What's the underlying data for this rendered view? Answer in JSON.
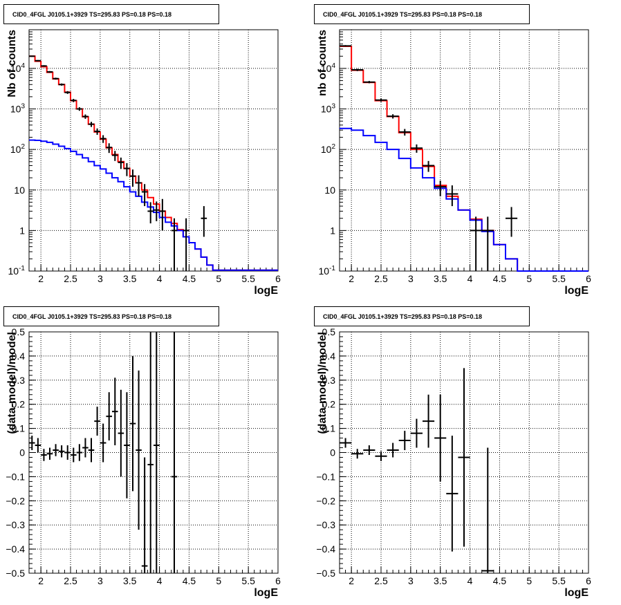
{
  "chart_data": [
    {
      "id": "tl",
      "type": "step",
      "title": "CID0_4FGL J0105.1+3929 TS=295.83 PS=0.18 PS=0.18",
      "xlabel": "logE",
      "ylabel": "Nb of counts",
      "ylog": true,
      "xlim": [
        1.8,
        6
      ],
      "ylim": [
        0.1,
        90000
      ],
      "grid": true,
      "x_ticks": [
        "2",
        "2.5",
        "3",
        "3.5",
        "4",
        "4.5",
        "5",
        "5.5",
        "6"
      ],
      "y_ticks": [
        "10^-1",
        "1",
        "10",
        "10^2",
        "10^3",
        "10^4"
      ],
      "bin_edges": [
        1.8,
        1.9,
        2.0,
        2.1,
        2.2,
        2.3,
        2.4,
        2.5,
        2.6,
        2.7,
        2.8,
        2.9,
        3.0,
        3.1,
        3.2,
        3.3,
        3.4,
        3.5,
        3.6,
        3.7,
        3.8,
        3.9,
        4.0,
        4.1,
        4.2,
        4.3,
        4.4,
        4.5,
        4.6,
        4.7,
        4.8,
        4.9,
        5.0,
        5.1,
        5.2,
        5.3,
        5.4,
        5.5,
        5.6,
        5.7,
        5.8,
        5.9,
        6.0
      ],
      "series": [
        {
          "color": "#ff0000",
          "values": [
            20000,
            15000,
            11000,
            8000,
            5500,
            4000,
            2600,
            1600,
            1000,
            640,
            420,
            270,
            180,
            110,
            75,
            50,
            34,
            22,
            15,
            10,
            6.5,
            4.5,
            3.0,
            2.1,
            1.5,
            1.05,
            0.7,
            0.5,
            0.35,
            0.22,
            0.14,
            0.105,
            0.105,
            0.105,
            0.105,
            0.105,
            0.105,
            0.105,
            0.105,
            0.105,
            0.105,
            0.105
          ]
        },
        {
          "color": "#0000ff",
          "values": [
            170,
            168,
            160,
            150,
            135,
            120,
            105,
            90,
            75,
            62,
            50,
            40,
            33,
            26,
            20,
            16,
            12,
            9,
            7,
            5,
            3.8,
            2.8,
            2.1,
            1.6,
            1.3,
            1.0,
            0.7,
            0.5,
            0.35,
            0.22,
            0.14,
            0.105,
            0.105,
            0.105,
            0.105,
            0.105,
            0.105,
            0.105,
            0.105,
            0.105,
            0.105,
            0.105
          ]
        }
      ],
      "points": [
        {
          "x": 1.85,
          "y": 20000,
          "yerr": [
            700,
            700
          ]
        },
        {
          "x": 1.95,
          "y": 15500,
          "yerr": [
            600,
            600
          ]
        },
        {
          "x": 2.05,
          "y": 11500,
          "yerr": [
            500,
            500
          ]
        },
        {
          "x": 2.15,
          "y": 8200,
          "yerr": [
            400,
            400
          ]
        },
        {
          "x": 2.25,
          "y": 5600,
          "yerr": [
            300,
            300
          ]
        },
        {
          "x": 2.35,
          "y": 4000,
          "yerr": [
            250,
            250
          ]
        },
        {
          "x": 2.45,
          "y": 2550,
          "yerr": [
            200,
            200
          ]
        },
        {
          "x": 2.55,
          "y": 1620,
          "yerr": [
            150,
            150
          ]
        },
        {
          "x": 2.65,
          "y": 1000,
          "yerr": [
            100,
            100
          ]
        },
        {
          "x": 2.75,
          "y": 650,
          "yerr": [
            80,
            80
          ]
        },
        {
          "x": 2.85,
          "y": 420,
          "yerr": [
            60,
            60
          ]
        },
        {
          "x": 2.95,
          "y": 280,
          "yerr": [
            50,
            50
          ]
        },
        {
          "x": 3.05,
          "y": 185,
          "yerr": [
            40,
            40
          ]
        },
        {
          "x": 3.15,
          "y": 112,
          "yerr": [
            30,
            30
          ]
        },
        {
          "x": 3.25,
          "y": 72,
          "yerr": [
            20,
            20
          ]
        },
        {
          "x": 3.35,
          "y": 48,
          "yerr": [
            15,
            15
          ]
        },
        {
          "x": 3.45,
          "y": 34,
          "yerr": [
            12,
            12
          ]
        },
        {
          "x": 3.55,
          "y": 22,
          "yerr": [
            10,
            10
          ]
        },
        {
          "x": 3.65,
          "y": 15,
          "yerr": [
            8,
            8
          ]
        },
        {
          "x": 3.75,
          "y": 9,
          "yerr": [
            5,
            5
          ]
        },
        {
          "x": 3.85,
          "y": 3.0,
          "yerr": [
            1.5,
            2
          ]
        },
        {
          "x": 3.95,
          "y": 3.2,
          "yerr": [
            1.5,
            2
          ]
        },
        {
          "x": 4.05,
          "y": 3.0,
          "yerr": [
            2,
            3
          ]
        },
        {
          "x": 4.25,
          "y": 1.0,
          "yerr": [
            0.9,
            1
          ]
        },
        {
          "x": 4.45,
          "y": 1.0,
          "yerr": [
            0.9,
            1
          ]
        },
        {
          "x": 4.75,
          "y": 2.0,
          "yerr": [
            1.3,
            2
          ]
        }
      ]
    },
    {
      "id": "tr",
      "type": "step",
      "title": "CID0_4FGL J0105.1+3929 TS=295.83 PS=0.18 PS=0.18",
      "xlabel": "logE",
      "ylabel": "nb of counts",
      "ylog": true,
      "xlim": [
        1.8,
        6
      ],
      "ylim": [
        0.1,
        90000
      ],
      "grid": true,
      "x_ticks": [
        "2",
        "2.5",
        "3",
        "3.5",
        "4",
        "4.5",
        "5",
        "5.5",
        "6"
      ],
      "y_ticks": [
        "10^-1",
        "1",
        "10",
        "10^2",
        "10^3",
        "10^4"
      ],
      "bin_edges": [
        1.8,
        2.0,
        2.2,
        2.4,
        2.6,
        2.8,
        3.0,
        3.2,
        3.4,
        3.6,
        3.8,
        4.0,
        4.2,
        4.4,
        4.6,
        4.8,
        5.0,
        5.2,
        5.4,
        5.6,
        5.8,
        6.0
      ],
      "series": [
        {
          "color": "#ff0000",
          "values": [
            35000,
            9000,
            4500,
            1600,
            650,
            260,
            100,
            38,
            13,
            7,
            3.2,
            1.9,
            1.0,
            0.45,
            0.2,
            0.1,
            0.1,
            0.1,
            0.1,
            0.1,
            0.1
          ]
        },
        {
          "color": "#0000ff",
          "values": [
            330,
            300,
            220,
            150,
            100,
            60,
            35,
            20,
            11,
            6,
            3.2,
            1.8,
            0.95,
            0.45,
            0.2,
            0.1,
            0.1,
            0.1,
            0.1,
            0.1,
            0.1
          ]
        }
      ],
      "points": [
        {
          "x": 1.9,
          "y": 36000,
          "yerr": [
            1500,
            1500
          ]
        },
        {
          "x": 2.1,
          "y": 9200,
          "yerr": [
            600,
            600
          ]
        },
        {
          "x": 2.3,
          "y": 4600,
          "yerr": [
            300,
            300
          ]
        },
        {
          "x": 2.5,
          "y": 1650,
          "yerr": [
            150,
            150
          ]
        },
        {
          "x": 2.7,
          "y": 660,
          "yerr": [
            80,
            80
          ]
        },
        {
          "x": 2.9,
          "y": 270,
          "yerr": [
            50,
            50
          ]
        },
        {
          "x": 3.1,
          "y": 108,
          "yerr": [
            25,
            25
          ]
        },
        {
          "x": 3.3,
          "y": 40,
          "yerr": [
            12,
            12
          ]
        },
        {
          "x": 3.5,
          "y": 12,
          "yerr": [
            5,
            5
          ]
        },
        {
          "x": 3.7,
          "y": 8,
          "yerr": [
            4,
            5
          ]
        },
        {
          "x": 4.1,
          "y": 1.0,
          "yerr": [
            0.9,
            1.2
          ]
        },
        {
          "x": 4.3,
          "y": 1.0,
          "yerr": [
            0.9,
            1.2
          ]
        },
        {
          "x": 4.7,
          "y": 2.0,
          "yerr": [
            1.3,
            1.8
          ]
        }
      ]
    },
    {
      "id": "bl",
      "type": "scatter",
      "title": "CID0_4FGL J0105.1+3929 TS=295.83 PS=0.18 PS=0.18",
      "xlabel": "logE",
      "ylabel": "(data-model)/model",
      "ylog": false,
      "xlim": [
        1.8,
        6
      ],
      "ylim": [
        -0.5,
        0.5
      ],
      "grid": true,
      "x_ticks": [
        "2",
        "2.5",
        "3",
        "3.5",
        "4",
        "4.5",
        "5",
        "5.5",
        "6"
      ],
      "y_ticks": [
        "-0.5",
        "-0.4",
        "-0.3",
        "-0.2",
        "-0.1",
        "0",
        "0.1",
        "0.2",
        "0.3",
        "0.4",
        "0.5"
      ],
      "points": [
        {
          "x": 1.85,
          "y": 0.04,
          "yerr": [
            0.03,
            0.03
          ]
        },
        {
          "x": 1.95,
          "y": 0.03,
          "yerr": [
            0.03,
            0.03
          ]
        },
        {
          "x": 2.05,
          "y": -0.01,
          "yerr": [
            0.025,
            0.025
          ]
        },
        {
          "x": 2.15,
          "y": -0.005,
          "yerr": [
            0.025,
            0.025
          ]
        },
        {
          "x": 2.25,
          "y": 0.01,
          "yerr": [
            0.025,
            0.025
          ]
        },
        {
          "x": 2.35,
          "y": 0.005,
          "yerr": [
            0.025,
            0.025
          ]
        },
        {
          "x": 2.45,
          "y": 0.0,
          "yerr": [
            0.03,
            0.03
          ]
        },
        {
          "x": 2.55,
          "y": -0.01,
          "yerr": [
            0.03,
            0.03
          ]
        },
        {
          "x": 2.65,
          "y": 0.0,
          "yerr": [
            0.035,
            0.035
          ]
        },
        {
          "x": 2.75,
          "y": 0.02,
          "yerr": [
            0.04,
            0.04
          ]
        },
        {
          "x": 2.85,
          "y": 0.01,
          "yerr": [
            0.05,
            0.05
          ]
        },
        {
          "x": 2.95,
          "y": 0.13,
          "yerr": [
            0.06,
            0.06
          ]
        },
        {
          "x": 3.05,
          "y": 0.04,
          "yerr": [
            0.08,
            0.08
          ]
        },
        {
          "x": 3.15,
          "y": 0.15,
          "yerr": [
            0.1,
            0.1
          ]
        },
        {
          "x": 3.25,
          "y": 0.17,
          "yerr": [
            0.14,
            0.14
          ]
        },
        {
          "x": 3.35,
          "y": 0.08,
          "yerr": [
            0.18,
            0.18
          ]
        },
        {
          "x": 3.45,
          "y": 0.03,
          "yerr": [
            0.22,
            0.22
          ]
        },
        {
          "x": 3.55,
          "y": 0.12,
          "yerr": [
            0.28,
            0.28
          ]
        },
        {
          "x": 3.65,
          "y": 0.01,
          "yerr": [
            0.33,
            0.33
          ]
        },
        {
          "x": 3.75,
          "y": -0.47,
          "yerr": [
            0.1,
            0.45
          ]
        },
        {
          "x": 3.85,
          "y": -0.05,
          "yerr": [
            0.45,
            0.55
          ]
        },
        {
          "x": 3.95,
          "y": 0.03,
          "yerr": [
            0.55,
            0.55
          ]
        },
        {
          "x": 4.25,
          "y": -0.1,
          "yerr": [
            0.5,
            0.6
          ]
        }
      ]
    },
    {
      "id": "br",
      "type": "scatter",
      "title": "CID0_4FGL J0105.1+3929 TS=295.83 PS=0.18 PS=0.18",
      "xlabel": "logE",
      "ylabel": "(data-model)/model",
      "ylog": false,
      "xlim": [
        1.8,
        6
      ],
      "ylim": [
        -0.5,
        0.5
      ],
      "grid": true,
      "x_ticks": [
        "2",
        "2.5",
        "3",
        "3.5",
        "4",
        "4.5",
        "5",
        "5.5",
        "6"
      ],
      "y_ticks": [
        "-0.5",
        "-0.4",
        "-0.3",
        "-0.2",
        "-0.1",
        "0",
        "0.1",
        "0.2",
        "0.3",
        "0.4",
        "0.5"
      ],
      "points": [
        {
          "x": 1.9,
          "y": 0.04,
          "yerr": [
            0.02,
            0.02
          ]
        },
        {
          "x": 2.1,
          "y": -0.005,
          "yerr": [
            0.02,
            0.02
          ]
        },
        {
          "x": 2.3,
          "y": 0.01,
          "yerr": [
            0.02,
            0.02
          ]
        },
        {
          "x": 2.5,
          "y": -0.015,
          "yerr": [
            0.02,
            0.02
          ]
        },
        {
          "x": 2.7,
          "y": 0.01,
          "yerr": [
            0.03,
            0.03
          ]
        },
        {
          "x": 2.9,
          "y": 0.05,
          "yerr": [
            0.04,
            0.04
          ]
        },
        {
          "x": 3.1,
          "y": 0.08,
          "yerr": [
            0.06,
            0.06
          ]
        },
        {
          "x": 3.3,
          "y": 0.13,
          "yerr": [
            0.11,
            0.11
          ]
        },
        {
          "x": 3.5,
          "y": 0.06,
          "yerr": [
            0.18,
            0.18
          ]
        },
        {
          "x": 3.7,
          "y": -0.17,
          "yerr": [
            0.24,
            0.24
          ]
        },
        {
          "x": 3.9,
          "y": -0.02,
          "yerr": [
            0.37,
            0.37
          ]
        },
        {
          "x": 4.3,
          "y": -0.49,
          "yerr": [
            0.01,
            0.51
          ]
        }
      ]
    }
  ]
}
